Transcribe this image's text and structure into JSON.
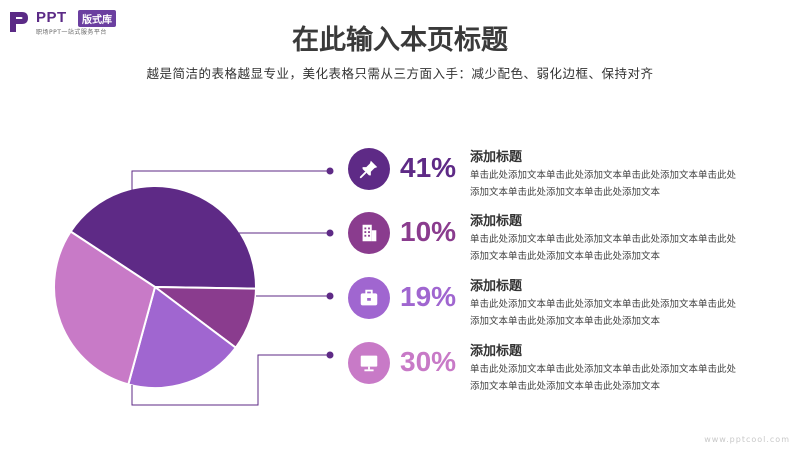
{
  "logo": {
    "brand": "PPT",
    "tag": "版式库",
    "sub": "职场PPT一站式服务平台"
  },
  "page": {
    "title": "在此输入本页标题",
    "subtitle": "越是简洁的表格越显专业，美化表格只需从三方面入手：减少配色、弱化边框、保持对齐"
  },
  "chart_data": {
    "type": "pie",
    "title": "",
    "slices": [
      {
        "label": "41%",
        "value": 41,
        "color": "#5e2a86"
      },
      {
        "label": "10%",
        "value": 10,
        "color": "#8a3c8e"
      },
      {
        "label": "19%",
        "value": 19,
        "color": "#a066d0"
      },
      {
        "label": "30%",
        "value": 30,
        "color": "#c87ac7"
      }
    ]
  },
  "items": [
    {
      "icon": "pin-icon",
      "pct": "41%",
      "color": "#5e2a86",
      "heading": "添加标题",
      "text": "单击此处添加文本单击此处添加文本单击此处添加文本单击此处添加文本单击此处添加文本单击此处添加文本"
    },
    {
      "icon": "building-icon",
      "pct": "10%",
      "color": "#8a3c8e",
      "heading": "添加标题",
      "text": "单击此处添加文本单击此处添加文本单击此处添加文本单击此处添加文本单击此处添加文本单击此处添加文本"
    },
    {
      "icon": "briefcase-icon",
      "pct": "19%",
      "color": "#a066d0",
      "heading": "添加标题",
      "text": "单击此处添加文本单击此处添加文本单击此处添加文本单击此处添加文本单击此处添加文本单击此处添加文本"
    },
    {
      "icon": "monitor-icon",
      "pct": "30%",
      "color": "#c87ac7",
      "heading": "添加标题",
      "text": "单击此处添加文本单击此处添加文本单击此处添加文本单击此处添加文本单击此处添加文本单击此处添加文本"
    }
  ],
  "watermark": "www.pptcool.com"
}
